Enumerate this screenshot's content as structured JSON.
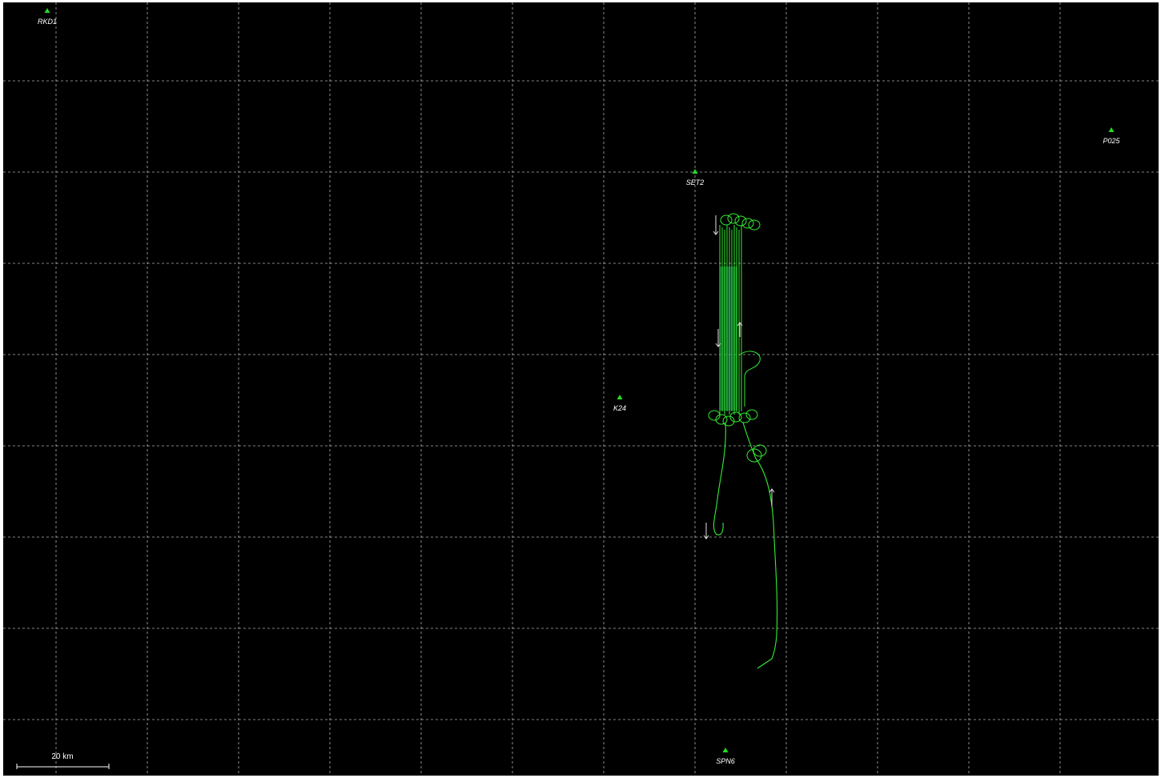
{
  "colors": {
    "background": "#000000",
    "grid": "#d0d0d0",
    "station_marker": "#22dd22",
    "track": "#33ee33",
    "track_dense": "#1a9a4a",
    "arrows": "#e0e0e0",
    "labels": "#ffffff"
  },
  "map": {
    "grid_style": "dashed",
    "stations": [
      {
        "id": "RKD1",
        "label": "RKD1",
        "icon": "triangle-marker-icon"
      },
      {
        "id": "P025",
        "label": "P025",
        "icon": "triangle-marker-icon"
      },
      {
        "id": "SET2",
        "label": "SET2",
        "icon": "triangle-marker-icon"
      },
      {
        "id": "K24",
        "label": "K24",
        "icon": "triangle-marker-icon"
      },
      {
        "id": "SPN6",
        "label": "SPN6",
        "icon": "triangle-marker-icon"
      }
    ],
    "scale_bar": {
      "label": "20 km"
    },
    "track": {
      "description_icon": "flight-track-icon"
    }
  }
}
